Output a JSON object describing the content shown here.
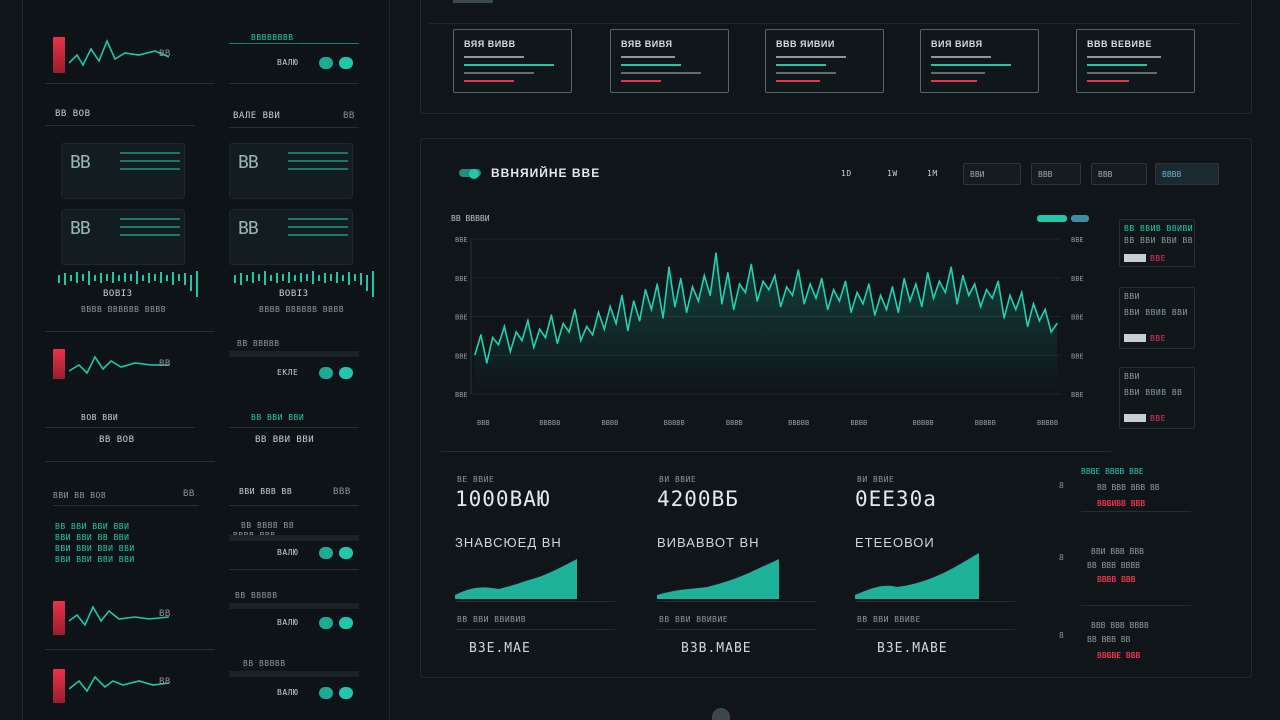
{
  "sidebar": {
    "blocks": [
      {
        "title": "",
        "status": "ВАЛЮ"
      },
      {
        "title": "ВВ ВОВ",
        "right_title": "ВАЛЕ ВВИ"
      },
      {
        "caption_left": "ВОВІЗ",
        "caption_right": "ВОВІЗ"
      },
      {
        "status": "ЕКЛЕ"
      },
      {
        "left_label": "ВОВ ВВИ",
        "right_label": "ВВ ВВИ ВВИ",
        "left_value": "ВВ ВОВ",
        "right_value": "ВВ ВВИ ВВИ"
      },
      {
        "left_title": "ВВИ ВВ ВОВ",
        "right_title": "ВВИ ВВВ ВВ"
      },
      {
        "status": "ВАЛЮ"
      },
      {
        "status": "ВАЛЮ"
      }
    ],
    "teal_list": [
      "ВВ ВВИ ВВИ ВВИ",
      "ВВИ ВВИ ВВ ВВИ",
      "ВВИ ВВИ ВВИ ВВИ",
      "ВВИ ВВИ ВВИ ВВИ"
    ]
  },
  "top_cards": [
    {
      "label": "ВЯЯ ВИВВ"
    },
    {
      "label": "ВЯВ ВИВЯ"
    },
    {
      "label": "ВВВ ЯИВИИ"
    },
    {
      "label": "ВИЯ ВИВЯ"
    },
    {
      "label": "ВВВ ВЕВИВЕ"
    }
  ],
  "chart_header": {
    "title": "ВВНЯИЙНЕ ВВЕ",
    "range_buttons": [
      "1D",
      "1W",
      "1M"
    ],
    "controls": [
      "ВВИ",
      "ВВВ",
      "ВВВ",
      "ВВВВ"
    ]
  },
  "chart_data": {
    "type": "line",
    "y_ticks_left": [
      "ВВЕ",
      "ВВЕ",
      "ВВЕ",
      "ВВЕ",
      "ВВЕ"
    ],
    "y_ticks_right": [
      "ВВЕ",
      "ВВЕ",
      "ВВЕ",
      "ВВЕ",
      "ВВЕ"
    ],
    "x_ticks": [
      "ВВВ",
      "ВВВВВ",
      "ВВВВ",
      "ВВВВВ",
      "ВВВВ",
      "ВВВВВ",
      "ВВВВ",
      "ВВВВВ",
      "ВВВВВ",
      "ВВВВВ"
    ],
    "series_label": "ВВ ВВВВИ",
    "values": [
      28,
      42,
      22,
      40,
      35,
      48,
      30,
      44,
      38,
      52,
      33,
      46,
      40,
      56,
      36,
      50,
      44,
      60,
      38,
      48,
      42,
      58,
      46,
      62,
      50,
      70,
      45,
      66,
      52,
      74,
      60,
      78,
      54,
      90,
      62,
      82,
      58,
      76,
      66,
      84,
      70,
      100,
      64,
      86,
      60,
      78,
      72,
      92,
      66,
      80,
      74,
      84,
      62,
      76,
      70,
      88,
      64,
      78,
      68,
      82,
      60,
      74,
      66,
      80,
      58,
      72,
      64,
      78,
      56,
      70,
      60,
      76,
      58,
      82,
      66,
      78,
      62,
      86,
      68,
      80,
      72,
      90,
      64,
      84,
      70,
      78,
      62,
      74,
      68,
      80,
      54,
      70,
      60,
      72,
      48,
      64,
      52,
      60,
      44,
      50
    ],
    "ylim": [
      0,
      110
    ]
  },
  "stats": [
    {
      "label": "ВЕ ВВИЕ",
      "value": "1000ВАЮ",
      "sub": "ЗНАВСЮЕД ВН",
      "footer": "ВВ ВВИ ВВИВИВ",
      "bottom": "ВЗЕ.МАЕ"
    },
    {
      "label": "ВИ ВВИЕ",
      "value": "4200ВБ",
      "sub": "ВИВАВВОТ ВН",
      "footer": "ВВ ВВИ ВВИВИЕ",
      "bottom": "ВЗВ.МАВЕ"
    },
    {
      "label": "ВИ ВВИЕ",
      "value": "0ЕЕЗ0а",
      "sub": "ЕТЕЕОВОИ",
      "footer": "ВВ ВВИ ВВИВЕ",
      "bottom": "ВЗЕ.МАВЕ"
    }
  ],
  "right_panel": {
    "top_label": "ВВ ВВИВ ВВИВИ",
    "items": [
      {
        "line1": "ВВ ВВИ ВВИ ВВ",
        "badge": "ВВИ",
        "value": "ВВЕ"
      },
      {
        "line1": "ВВИ",
        "line2": "ВВИ ВВИВ ВВИ",
        "badge": "ВВИ",
        "value": "ВВЕ"
      },
      {
        "line1": "ВВИ",
        "line2": "ВВИ ВВИВ ВВ",
        "badge": "ВВИ",
        "value": "ВВЕ"
      }
    ],
    "bottom_rows": [
      {
        "head": "ВВВЕ ВВВВ ВВЕ",
        "line": "ВВ ВВВ ВВВ ВВ",
        "red": "ВВВИВВ ВВВ"
      },
      {
        "head": "ВВИ ВВВ ВВВ",
        "line": "ВВ ВВВ ВВВВ",
        "red": "ВВВВ ВВВ"
      },
      {
        "head": "ВВВ ВВВ ВВВВ",
        "line": "ВВ ВВВ ВВ",
        "red": "ВВВВЕ ВВВ"
      }
    ]
  }
}
